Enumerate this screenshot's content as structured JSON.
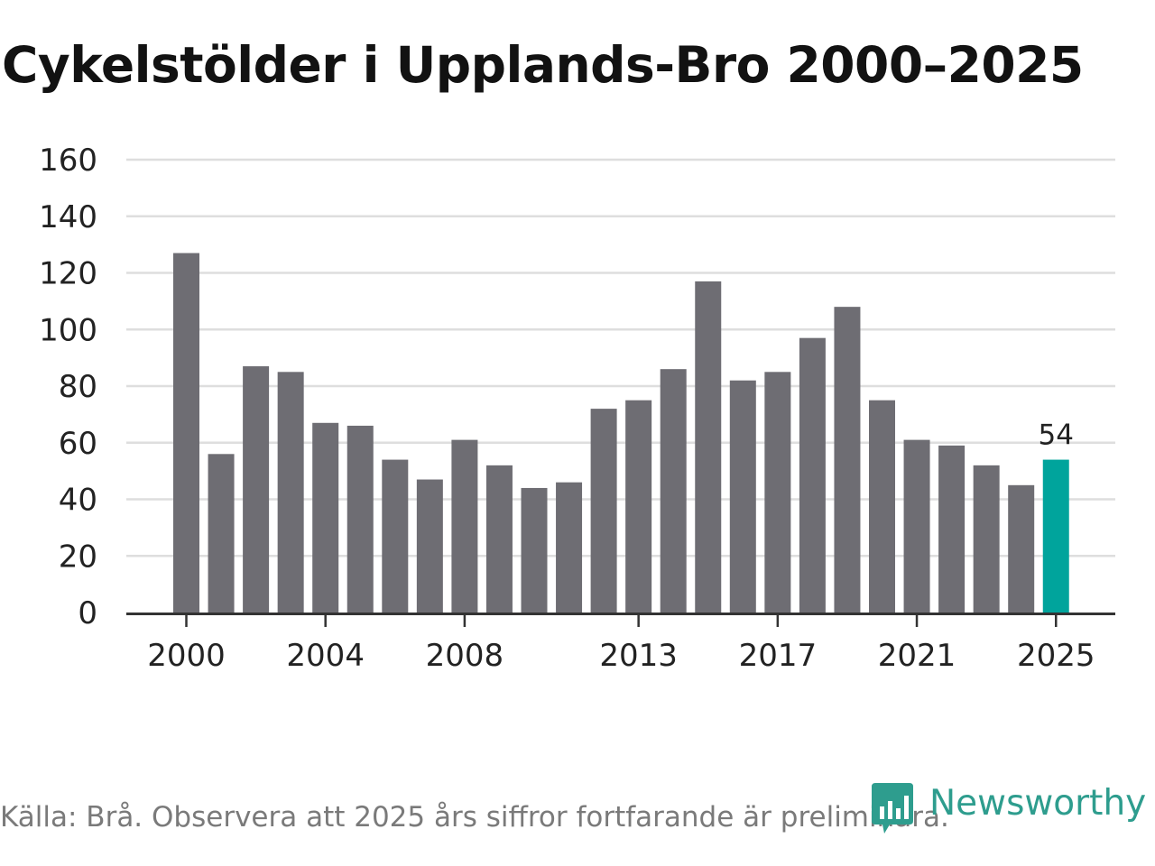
{
  "title": "Cykelstölder i Upplands-Bro 2000–2025",
  "source": "Källa: Brå. Observera att 2025 års siffror fortfarande är preliminära.",
  "brand": {
    "name": "Newsworthy",
    "logo_icon": "bar-chart-icon",
    "color": "#2e9d8e"
  },
  "colors": {
    "bar": "#6e6d73",
    "highlight": "#00a49c",
    "grid": "#dedede",
    "axis": "#333333",
    "text": "#222222"
  },
  "chart_data": {
    "type": "bar",
    "title": "Cykelstölder i Upplands-Bro 2000–2025",
    "xlabel": "",
    "ylabel": "",
    "ylim": [
      0,
      160
    ],
    "yticks": [
      0,
      20,
      40,
      60,
      80,
      100,
      120,
      140,
      160
    ],
    "grid": true,
    "categories": [
      "2000",
      "2001",
      "2002",
      "2003",
      "2004",
      "2005",
      "2006",
      "2007",
      "2008",
      "2009",
      "2010",
      "2011",
      "2012",
      "2013",
      "2014",
      "2015",
      "2016",
      "2017",
      "2018",
      "2019",
      "2020",
      "2021",
      "2022",
      "2023",
      "2024",
      "2025"
    ],
    "xtick_labels": [
      "2000",
      "2004",
      "2008",
      "2013",
      "2017",
      "2021",
      "2025"
    ],
    "values": [
      127,
      56,
      87,
      85,
      67,
      66,
      54,
      47,
      61,
      52,
      44,
      46,
      72,
      75,
      86,
      117,
      82,
      85,
      97,
      108,
      75,
      61,
      59,
      52,
      45,
      54
    ],
    "highlight": {
      "category": "2025",
      "label": "54"
    }
  }
}
